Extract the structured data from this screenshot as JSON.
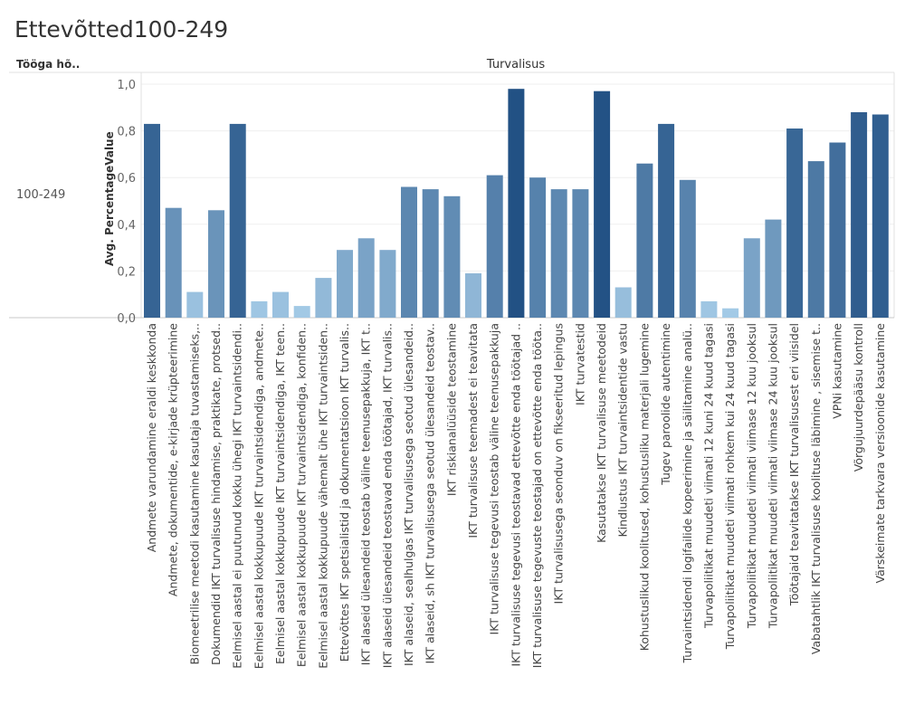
{
  "title": "Ettevõtted100-249",
  "header": {
    "row_dimension": "Tööga hõ..",
    "column_dimension": "Turvalisus"
  },
  "row_label": "100-249",
  "chart_data": {
    "type": "bar",
    "title": "Ettevõtted100-249",
    "xlabel": "",
    "ylabel": "Avg. PercentageValue",
    "ylim": [
      0,
      1.0
    ],
    "yticks": [
      "0,0",
      "0,2",
      "0,4",
      "0,6",
      "0,8",
      "1,0"
    ],
    "grid": true,
    "colors": {
      "low": "#a9cfea",
      "high": "#1f4e82"
    },
    "categories": [
      "Andmete varundamine eraldi keskkonda",
      "Andmete, dokumentide, e-kirjade krüpteerimine",
      "Biomeetrilise meetodi kasutamine kasutaja tuvastamiseks,..",
      "Dokumendid IKT turvalisuse hindamise, praktikate, protsed..",
      "Eelmisel aastal ei puutunud kokku ühegi IKT turvaintsidendi..",
      "Eelmisel aastal kokkupuude IKT turvaintsidendiga, andmete..",
      "Eelmisel aastal kokkupuude IKT turvaintsidendiga, IKT teen..",
      "Eelmisel aastal kokkupuude IKT turvaintsidendiga, konfiden..",
      "Eelmisel aastal kokkupuude vähemalt ühe IKT turvaintsiden..",
      "Ettevõttes IKT spetsialistid ja dokumentatsioon IKT turvalis..",
      "IKT alaseid ülesandeid teostab väline teenusepakkuja, IKT t..",
      "IKT alaseid ülesandeid teostavad enda töötajad, IKT turvalis..",
      "IKT alaseid, sealhulgas IKT turvalisusega seotud ülesandeid..",
      "IKT alaseid, sh IKT turvalisusega seotud ülesandeid teostav..",
      "IKT riskianalüüside teostamine",
      "IKT turvalisuse teemadest ei teavitata",
      "IKT turvalisuse tegevusi teostab väline teenusepakkuja",
      "IKT turvalisuse tegevusi teostavad ettevõtte enda töötajad ..",
      "IKT turvalisuse tegevuste teostajad on ettevõtte enda tööta..",
      "IKT turvalisusega seonduv on fikseeritud lepingus",
      "IKT turvatestid",
      "Kasutatakse IKT turvalisuse meetodeid",
      "Kindlustus IKT turvaintsidentide vastu",
      "Kohustuslikud koolitused, kohustusliku materjali lugemine",
      "Tugev paroolide autentimine",
      "Turvaintsidendi logifailide kopeerimine ja säilitamine analü..",
      "Turvapoliitikat muudeti viimati 12 kuni 24 kuud tagasi",
      "Turvapoliitikat muudeti viimati rohkem kui 24 kuud tagasi",
      "Turvapoliitikat muudeti viimati viimase 12 kuu jooksul",
      "Turvapoliitikat muudeti viimati viimase 24 kuu jooksul",
      "Töötajaid teavitatakse IKT turvalisusest eri viisidel",
      "Vabatahtlik IKT turvalisuse koolituse läbimine , sisemise t..",
      "VPNi kasutamine",
      "Võrgujuurdepääsu kontroll",
      "Värskeimate tarkvara versioonide kasutamine"
    ],
    "values": [
      0.83,
      0.47,
      0.11,
      0.46,
      0.83,
      0.07,
      0.11,
      0.05,
      0.17,
      0.29,
      0.34,
      0.29,
      0.56,
      0.55,
      0.52,
      0.19,
      0.61,
      0.98,
      0.6,
      0.55,
      0.55,
      0.97,
      0.13,
      0.66,
      0.83,
      0.59,
      0.07,
      0.04,
      0.34,
      0.42,
      0.81,
      0.67,
      0.75,
      0.88,
      0.87
    ]
  }
}
